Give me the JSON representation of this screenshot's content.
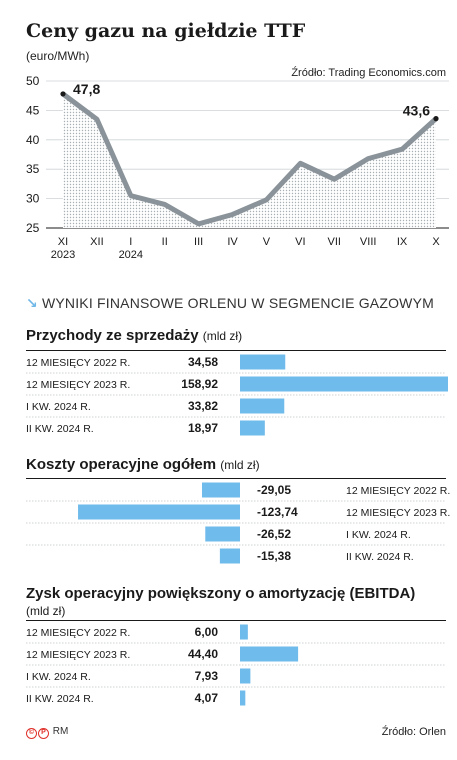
{
  "header": {
    "title": "Ceny gazu na giełdzie TTF",
    "unit": "(euro/MWh)",
    "source": "Źródło: Trading Economics.com"
  },
  "chart_data": [
    {
      "type": "line",
      "title": "Ceny gazu na giełdzie TTF",
      "ylabel": "(euro/MWh)",
      "x": [
        "XI",
        "XII",
        "I",
        "II",
        "III",
        "IV",
        "V",
        "VI",
        "VII",
        "VIII",
        "IX",
        "X"
      ],
      "x_year_labels": [
        "2023",
        "",
        "2024",
        "",
        "",
        "",
        "",
        "",
        "",
        "",
        "",
        ""
      ],
      "y_ticks": [
        "25",
        "30",
        "35",
        "40",
        "45",
        "50"
      ],
      "values": [
        47.8,
        43.5,
        30.5,
        29.0,
        25.7,
        27.3,
        29.8,
        36.0,
        33.3,
        36.8,
        38.4,
        43.6
      ],
      "point_labels": [
        "47,8",
        "",
        "",
        "",
        "",
        "",
        "",
        "",
        "",
        "",
        "",
        "43,6"
      ],
      "ylim": [
        25,
        50
      ],
      "grid": true,
      "line_color": "#8a9399",
      "area_pattern": "dotted"
    },
    {
      "type": "bar",
      "title": "Przychody ze sprzedaży",
      "unit": "(mld zł)",
      "categories": [
        "12 MIESIĘCY 2022 R.",
        "12 MIESIĘCY 2023 R.",
        "I KW. 2024 R.",
        "II KW. 2024 R."
      ],
      "values": [
        34.58,
        158.92,
        33.82,
        18.97
      ],
      "value_labels": [
        "34,58",
        "158,92",
        "33,82",
        "18,97"
      ],
      "color": "#6fbbeb"
    },
    {
      "type": "bar",
      "title": "Koszty operacyjne ogółem",
      "unit": "(mld zł)",
      "categories": [
        "12 MIESIĘCY 2022 R.",
        "12 MIESIĘCY 2023 R.",
        "I KW. 2024 R.",
        "II KW. 2024 R."
      ],
      "values": [
        -29.05,
        -123.74,
        -26.52,
        -15.38
      ],
      "value_labels": [
        "-29,05",
        "-123,74",
        "-26,52",
        "-15,38"
      ],
      "color": "#6fbbeb"
    },
    {
      "type": "bar",
      "title": "Zysk operacyjny powiększony o amortyzację (EBITDA)",
      "unit": "(mld zł)",
      "categories": [
        "12 MIESIĘCY 2022 R.",
        "12 MIESIĘCY 2023 R.",
        "I KW. 2024 R.",
        "II KW. 2024 R."
      ],
      "values": [
        6.0,
        44.4,
        7.93,
        4.07
      ],
      "value_labels": [
        "6,00",
        "44,40",
        "7,93",
        "4,07"
      ],
      "color": "#6fbbeb"
    }
  ],
  "section": {
    "arrow": "↘",
    "heading": "WYNIKI FINANSOWE ORLENU W SEGMENCIE GAZOWYM"
  },
  "footer": {
    "logo_c": "©",
    "logo_p": "P",
    "logo_rm": "RM",
    "source": "Źródło: Orlen"
  }
}
